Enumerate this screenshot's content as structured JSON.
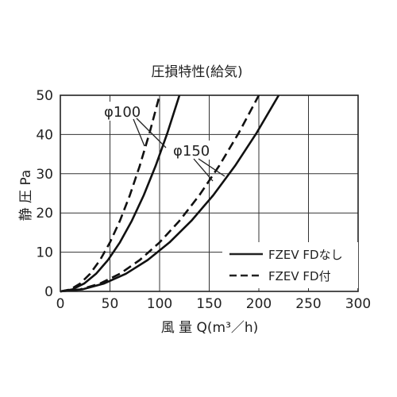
{
  "chart_data": {
    "type": "line",
    "title": "圧損特性(給気)",
    "xlabel": "風 量 Q(m³／h)",
    "ylabel": "静 圧 Pa",
    "xlim": [
      0,
      300
    ],
    "ylim": [
      0,
      50
    ],
    "x_ticks": [
      "0",
      "50",
      "100",
      "150",
      "200",
      "250",
      "300"
    ],
    "y_ticks": [
      "0",
      "10",
      "20",
      "30",
      "40",
      "50"
    ],
    "grid": true,
    "legend_position": "bottom-right",
    "legend": [
      {
        "label": "FZEV FDなし",
        "style": "solid"
      },
      {
        "label": "FZEV FD付",
        "style": "dashed"
      }
    ],
    "annotations": [
      {
        "text": "φ100",
        "points_to": [
          "φ100 FZEV FD付",
          "φ100 FZEV FDなし"
        ]
      },
      {
        "text": "φ150",
        "points_to": [
          "φ150 FZEV FD付",
          "φ150 FZEV FDなし"
        ]
      }
    ],
    "series": [
      {
        "group": "φ100",
        "style": "dashed",
        "x": [
          0,
          10,
          20,
          30,
          40,
          50,
          60,
          70,
          80,
          90,
          100
        ],
        "y": [
          0,
          0.5,
          2.0,
          4.5,
          8,
          12.5,
          18,
          24.5,
          32,
          40.5,
          50
        ]
      },
      {
        "group": "φ100",
        "style": "solid",
        "x": [
          0,
          12,
          24,
          36,
          48,
          60,
          72,
          84,
          96,
          108,
          120
        ],
        "y": [
          0,
          0.5,
          2.0,
          4.5,
          8,
          12.5,
          18,
          24.5,
          32,
          40.5,
          50
        ]
      },
      {
        "group": "φ150",
        "style": "dashed",
        "x": [
          0,
          20,
          40,
          60,
          80,
          100,
          120,
          140,
          160,
          180,
          200
        ],
        "y": [
          0,
          0.5,
          2.0,
          4.5,
          8,
          12.5,
          18,
          24.5,
          32,
          40.5,
          50
        ]
      },
      {
        "group": "φ150",
        "style": "solid",
        "x": [
          0,
          22,
          44,
          66,
          88,
          110,
          132,
          154,
          176,
          198,
          220
        ],
        "y": [
          0,
          0.5,
          2.0,
          4.5,
          8,
          12.5,
          18,
          24.5,
          32,
          40.5,
          50
        ]
      }
    ]
  }
}
